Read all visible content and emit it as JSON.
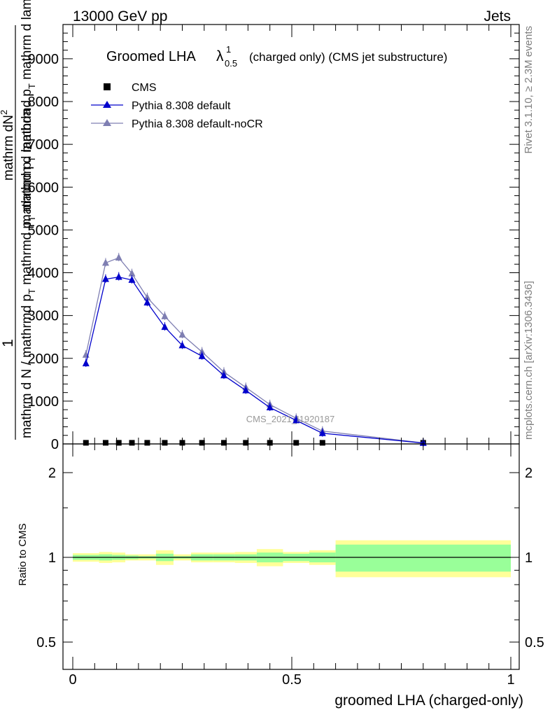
{
  "header": {
    "left": "13000 GeV pp",
    "right": "Jets"
  },
  "side_labels": {
    "rivet": "Rivet 3.1.10, ≥ 2.3M events",
    "mcplots": "mcplots.cern.ch [arXiv:1306.3436]"
  },
  "chart_data": {
    "type": "line",
    "title": {
      "prefix": "Groomed LHA",
      "symbol": "λ",
      "sup": "1",
      "sub": "0.5",
      "suffix": "(charged only) (CMS jet substructure)"
    },
    "watermark": "CMS_2021_I1920187",
    "ylabel": {
      "numerator": "1",
      "denominator": "mathrm d N / mathrmd p_T mathrmd p_T mathrm d lambda",
      "numerator2": "mathrm d²N",
      "denominator2": "mathrmd p_T mathrmd p_T mathrm d lambda"
    },
    "ylabel_display": {
      "left_top": "1",
      "left_bottom": "mathrm d N / mathrmd p",
      "left_bottom_sub": "T",
      "left_bottom_2": " mathrmd p",
      "left_bottom_2_sub": "T",
      "left_bottom_3": " mathrm d lambda",
      "right_top": "mathrm dN",
      "right_top_sup": "2",
      "right_bottom": "mathrmd p",
      "right_bottom_sub": "T",
      "right_bottom_2": " mathrmd p",
      "right_bottom_2_sub": "T",
      "right_bottom_3": " mathrm d lambda"
    },
    "xlabel": "groomed LHA (charged-only)",
    "ratio_ylabel": "Ratio to CMS",
    "xlim": [
      0,
      1
    ],
    "ylim": [
      0,
      9800
    ],
    "ratio_ylim": [
      0.4,
      2.4
    ],
    "main_yticks": [
      {
        "value": 0,
        "label": "0"
      },
      {
        "value": 1000,
        "label": "1000"
      },
      {
        "value": 2000,
        "label": "2000"
      },
      {
        "value": 3000,
        "label": "3000"
      },
      {
        "value": 4000,
        "label": "4000"
      },
      {
        "value": 5000,
        "label": "5000"
      },
      {
        "value": 6000,
        "label": "6000"
      },
      {
        "value": 7000,
        "label": "7000"
      },
      {
        "value": 8000,
        "label": "8000"
      },
      {
        "value": 9000,
        "label": "9000"
      }
    ],
    "xticks": [
      {
        "value": 0,
        "label": "0"
      },
      {
        "value": 0.5,
        "label": "0.5"
      },
      {
        "value": 1,
        "label": "1"
      }
    ],
    "ratio_yticks": [
      {
        "value": 0.5,
        "label": "0.5"
      },
      {
        "value": 1,
        "label": "1"
      },
      {
        "value": 2,
        "label": "2"
      }
    ],
    "legend": [
      {
        "name": "CMS",
        "marker": "square",
        "color": "#000000"
      },
      {
        "name": "Pythia 8.308 default",
        "marker": "triangle",
        "color": "#0000cc"
      },
      {
        "name": "Pythia 8.308 default-noCR",
        "marker": "triangle",
        "color": "#7f7fb2"
      }
    ],
    "bins": [
      0,
      0.06,
      0.09,
      0.12,
      0.15,
      0.19,
      0.23,
      0.27,
      0.32,
      0.37,
      0.42,
      0.48,
      0.54,
      0.6,
      1.0
    ],
    "cms": {
      "x": [
        0.03,
        0.075,
        0.105,
        0.135,
        0.17,
        0.21,
        0.25,
        0.295,
        0.345,
        0.395,
        0.45,
        0.51,
        0.57,
        0.8
      ],
      "y": [
        10,
        10,
        10,
        10,
        10,
        10,
        10,
        10,
        10,
        10,
        10,
        10,
        10,
        10
      ]
    },
    "series": [
      {
        "name": "Pythia 8.308 default",
        "color": "#0000cc",
        "x": [
          0.03,
          0.075,
          0.105,
          0.135,
          0.17,
          0.21,
          0.25,
          0.295,
          0.345,
          0.395,
          0.45,
          0.51,
          0.57,
          0.8
        ],
        "y": [
          1880,
          3850,
          3900,
          3830,
          3300,
          2730,
          2300,
          2050,
          1600,
          1250,
          850,
          550,
          250,
          20
        ]
      },
      {
        "name": "Pythia 8.308 default-noCR",
        "color": "#7f7fb2",
        "x": [
          0.03,
          0.075,
          0.105,
          0.135,
          0.17,
          0.21,
          0.25,
          0.295,
          0.345,
          0.395,
          0.45,
          0.51,
          0.57,
          0.8
        ],
        "y": [
          2080,
          4230,
          4350,
          3980,
          3420,
          2980,
          2550,
          2150,
          1680,
          1320,
          920,
          600,
          300,
          25
        ]
      }
    ],
    "ratio_bands": {
      "inner_color": "#99ff99",
      "outer_color": "#ffff99",
      "lo_inner": [
        0.98,
        0.975,
        0.98,
        0.985,
        0.99,
        0.97,
        0.99,
        0.975,
        0.975,
        0.975,
        0.96,
        0.97,
        0.96,
        0.89
      ],
      "hi_inner": [
        1.02,
        1.025,
        1.02,
        1.015,
        1.01,
        1.03,
        1.01,
        1.025,
        1.025,
        1.025,
        1.04,
        1.03,
        1.04,
        1.11
      ],
      "lo_outer": [
        0.965,
        0.955,
        0.96,
        0.975,
        0.975,
        0.94,
        0.975,
        0.96,
        0.96,
        0.955,
        0.93,
        0.955,
        0.94,
        0.85
      ],
      "hi_outer": [
        1.035,
        1.045,
        1.04,
        1.025,
        1.025,
        1.06,
        1.025,
        1.04,
        1.04,
        1.045,
        1.07,
        1.045,
        1.06,
        1.15
      ]
    }
  }
}
